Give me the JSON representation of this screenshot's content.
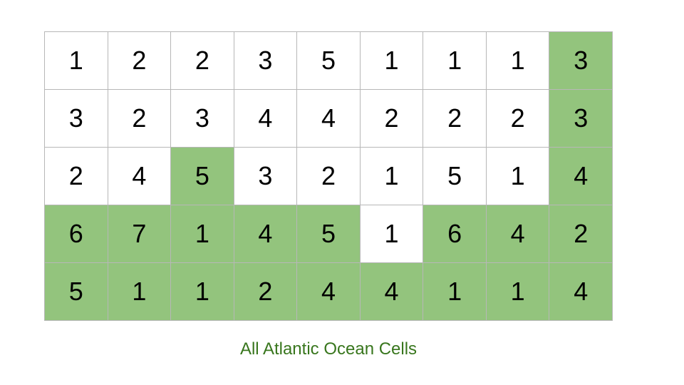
{
  "grid": {
    "highlight_color": "#93c47d",
    "rows": [
      [
        {
          "v": "1",
          "hl": false
        },
        {
          "v": "2",
          "hl": false
        },
        {
          "v": "2",
          "hl": false
        },
        {
          "v": "3",
          "hl": false
        },
        {
          "v": "5",
          "hl": false
        },
        {
          "v": "1",
          "hl": false
        },
        {
          "v": "1",
          "hl": false
        },
        {
          "v": "1",
          "hl": false
        },
        {
          "v": "3",
          "hl": true
        }
      ],
      [
        {
          "v": "3",
          "hl": false
        },
        {
          "v": "2",
          "hl": false
        },
        {
          "v": "3",
          "hl": false
        },
        {
          "v": "4",
          "hl": false
        },
        {
          "v": "4",
          "hl": false
        },
        {
          "v": "2",
          "hl": false
        },
        {
          "v": "2",
          "hl": false
        },
        {
          "v": "2",
          "hl": false
        },
        {
          "v": "3",
          "hl": true
        }
      ],
      [
        {
          "v": "2",
          "hl": false
        },
        {
          "v": "4",
          "hl": false
        },
        {
          "v": "5",
          "hl": true
        },
        {
          "v": "3",
          "hl": false
        },
        {
          "v": "2",
          "hl": false
        },
        {
          "v": "1",
          "hl": false
        },
        {
          "v": "5",
          "hl": false
        },
        {
          "v": "1",
          "hl": false
        },
        {
          "v": "4",
          "hl": true
        }
      ],
      [
        {
          "v": "6",
          "hl": true
        },
        {
          "v": "7",
          "hl": true
        },
        {
          "v": "1",
          "hl": true
        },
        {
          "v": "4",
          "hl": true
        },
        {
          "v": "5",
          "hl": true
        },
        {
          "v": "1",
          "hl": false
        },
        {
          "v": "6",
          "hl": true
        },
        {
          "v": "4",
          "hl": true
        },
        {
          "v": "2",
          "hl": true
        }
      ],
      [
        {
          "v": "5",
          "hl": true
        },
        {
          "v": "1",
          "hl": true
        },
        {
          "v": "1",
          "hl": true
        },
        {
          "v": "2",
          "hl": true
        },
        {
          "v": "4",
          "hl": true
        },
        {
          "v": "4",
          "hl": true
        },
        {
          "v": "1",
          "hl": true
        },
        {
          "v": "1",
          "hl": true
        },
        {
          "v": "4",
          "hl": true
        }
      ]
    ]
  },
  "caption": {
    "text": "All Atlantic Ocean Cells",
    "color": "#38761d"
  }
}
